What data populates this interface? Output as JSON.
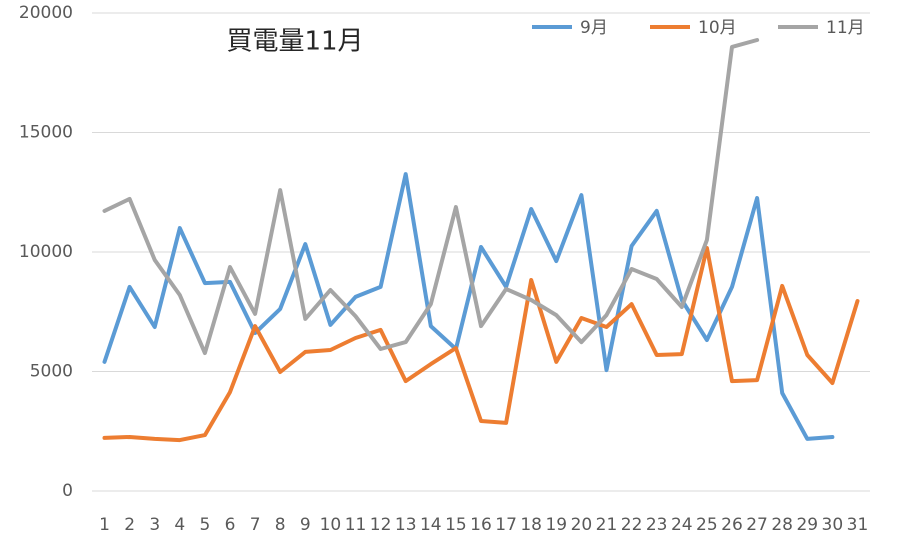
{
  "chart_data": {
    "type": "line",
    "title": "買電量11月",
    "categories": [
      "1",
      "2",
      "3",
      "4",
      "5",
      "6",
      "7",
      "8",
      "9",
      "10",
      "11",
      "12",
      "13",
      "14",
      "15",
      "16",
      "17",
      "18",
      "19",
      "20",
      "21",
      "22",
      "23",
      "24",
      "25",
      "26",
      "27",
      "28",
      "29",
      "30",
      "31"
    ],
    "series": [
      {
        "name": "9月",
        "color": "#5b9bd5",
        "values": [
          5400,
          8540,
          6860,
          11000,
          8700,
          8750,
          6610,
          7620,
          10330,
          6950,
          8120,
          8540,
          13260,
          6900,
          5940,
          10210,
          8540,
          11800,
          9620,
          12380,
          5060,
          10250,
          11720,
          7990,
          6320,
          8540,
          12260,
          4100,
          2180,
          2260,
          null
        ]
      },
      {
        "name": "10月",
        "color": "#ed7d31",
        "values": [
          2220,
          2260,
          2180,
          2130,
          2340,
          4140,
          6900,
          4980,
          5820,
          5900,
          6400,
          6740,
          4600,
          5310,
          5980,
          2930,
          2850,
          8830,
          5400,
          7240,
          6860,
          7820,
          5690,
          5730,
          10170,
          4600,
          4640,
          8580,
          5690,
          4520,
          7950
        ]
      },
      {
        "name": "11月",
        "color": "#a5a5a5",
        "values": [
          11720,
          12220,
          9670,
          8200,
          5770,
          9370,
          7410,
          12590,
          7200,
          8410,
          7320,
          5940,
          6230,
          7820,
          11880,
          6900,
          8450,
          7990,
          7360,
          6230,
          7360,
          9290,
          8870,
          7700,
          10500,
          18580,
          18870,
          null,
          null,
          null,
          null
        ]
      }
    ],
    "ylim": [
      0,
      20000
    ],
    "yticks": [
      0,
      5000,
      10000,
      15000,
      20000
    ],
    "grid": true,
    "legend": "top-right"
  }
}
